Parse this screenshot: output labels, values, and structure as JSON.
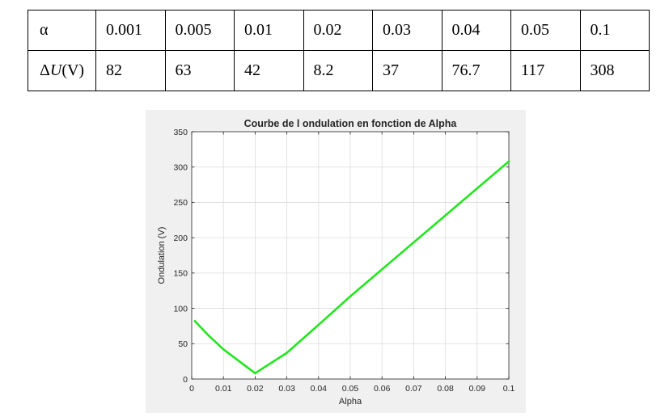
{
  "table": {
    "alpha_label": "α",
    "delta_prefix": "Δ",
    "delta_var": "U",
    "delta_unit": "(V)",
    "alpha_values": [
      "0.001",
      "0.005",
      "0.01",
      "0.02",
      "0.03",
      "0.04",
      "0.05",
      "0.1"
    ],
    "delta_values": [
      "82",
      "63",
      "42",
      "8.2",
      "37",
      "76.7",
      "117",
      "308"
    ]
  },
  "chart_data": {
    "type": "line",
    "title": "Courbe de l ondulation en fonction de Alpha",
    "xlabel": "Alpha",
    "ylabel": "Ondulation (V)",
    "xlim": [
      0,
      0.1
    ],
    "ylim": [
      0,
      350
    ],
    "xticks": [
      "0",
      "0.01",
      "0.02",
      "0.03",
      "0.04",
      "0.05",
      "0.06",
      "0.07",
      "0.08",
      "0.09",
      "0.1"
    ],
    "yticks": [
      "0",
      "50",
      "100",
      "150",
      "200",
      "250",
      "300",
      "350"
    ],
    "grid": true,
    "series": [
      {
        "color": "#22e61e",
        "x": [
          0.001,
          0.005,
          0.01,
          0.02,
          0.03,
          0.04,
          0.05,
          0.1
        ],
        "y": [
          82,
          63,
          42,
          8.2,
          37,
          76.7,
          117,
          308
        ]
      }
    ]
  }
}
